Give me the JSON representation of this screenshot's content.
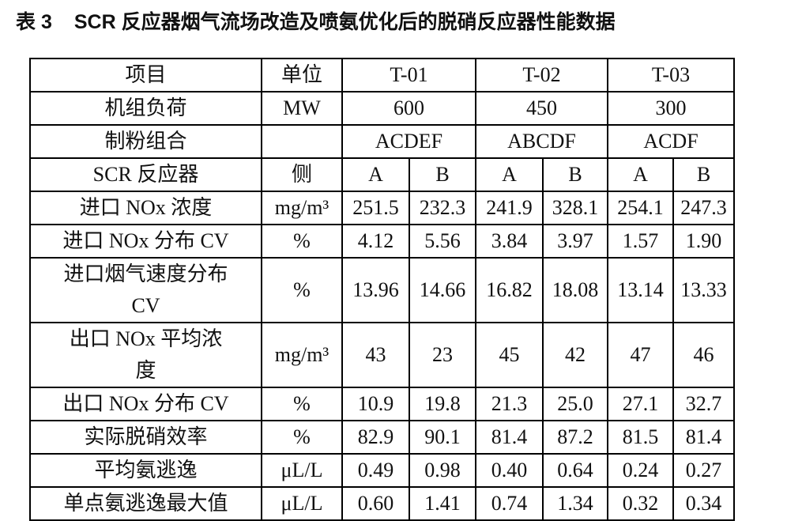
{
  "title": {
    "label": "表 3",
    "text": "SCR 反应器烟气流场改造及喷氨优化后的脱硝反应器性能数据"
  },
  "table": {
    "header": [
      "项目",
      "单位",
      "T-01",
      "T-02",
      "T-03"
    ],
    "unit_load": {
      "label": "机组负荷",
      "unit": "MW",
      "values": [
        "600",
        "450",
        "300"
      ]
    },
    "mill_combo": {
      "label": "制粉组合",
      "values": [
        "ACDEF",
        "ABCDF",
        "ACDF"
      ]
    },
    "sides": {
      "label": "SCR 反应器",
      "unit": "侧",
      "values": [
        "A",
        "B",
        "A",
        "B",
        "A",
        "B"
      ]
    },
    "rows": [
      {
        "label": "进口 NOx 浓度",
        "unit": "mg/m³",
        "values": [
          "251.5",
          "232.3",
          "241.9",
          "328.1",
          "254.1",
          "247.3"
        ]
      },
      {
        "label": "进口 NOx 分布 CV",
        "unit": "%",
        "values": [
          "4.12",
          "5.56",
          "3.84",
          "3.97",
          "1.57",
          "1.90"
        ]
      },
      {
        "label": "进口烟气速度分布 CV",
        "unit": "%",
        "values": [
          "13.96",
          "14.66",
          "16.82",
          "18.08",
          "13.14",
          "13.33"
        ]
      },
      {
        "label": "出口 NOx 平均浓度",
        "unit": "mg/m³",
        "values": [
          "43",
          "23",
          "45",
          "42",
          "47",
          "46"
        ]
      },
      {
        "label": "出口 NOx 分布 CV",
        "unit": "%",
        "values": [
          "10.9",
          "19.8",
          "21.3",
          "25.0",
          "27.1",
          "32.7"
        ]
      },
      {
        "label": "实际脱硝效率",
        "unit": "%",
        "values": [
          "82.9",
          "90.1",
          "81.4",
          "87.2",
          "81.5",
          "81.4"
        ]
      },
      {
        "label": "平均氨逃逸",
        "unit": "μL/L",
        "values": [
          "0.49",
          "0.98",
          "0.40",
          "0.64",
          "0.24",
          "0.27"
        ]
      },
      {
        "label": "单点氨逃逸最大值",
        "unit": "μL/L",
        "values": [
          "0.60",
          "1.41",
          "0.74",
          "1.34",
          "0.32",
          "0.34"
        ]
      }
    ]
  }
}
